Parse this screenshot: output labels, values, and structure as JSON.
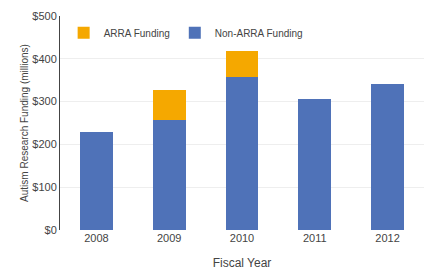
{
  "chart_data": {
    "type": "bar",
    "stacked": true,
    "xlabel": "Fiscal Year",
    "ylabel": "Autism Research Funding (millions)",
    "categories": [
      "2008",
      "2009",
      "2010",
      "2011",
      "2012"
    ],
    "series": [
      {
        "name": "Non-ARRA Funding",
        "color": "#4F72B8",
        "values": [
          228,
          258,
          357,
          307,
          340
        ]
      },
      {
        "name": "ARRA Funding",
        "color": "#F5A800",
        "values": [
          0,
          68,
          62,
          0,
          0
        ]
      }
    ],
    "ylim": [
      0,
      500
    ],
    "yticks": [
      {
        "value": 0,
        "label": "$0"
      },
      {
        "value": 100,
        "label": "$100"
      },
      {
        "value": 200,
        "label": "$200"
      },
      {
        "value": 300,
        "label": "$300"
      },
      {
        "value": 400,
        "label": "$400"
      },
      {
        "value": 500,
        "label": "$500"
      }
    ],
    "grid": true,
    "legend": "upper left"
  }
}
